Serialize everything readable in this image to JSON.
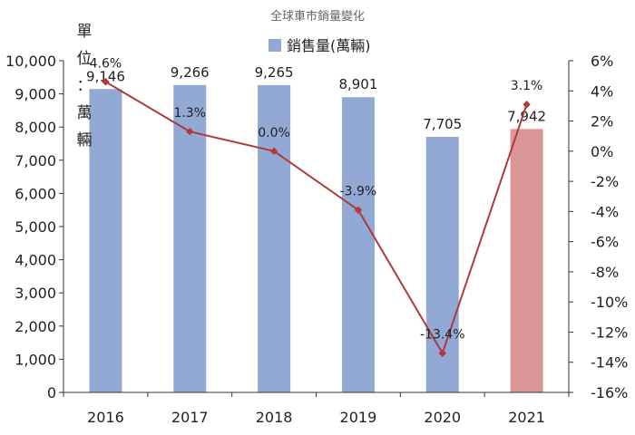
{
  "chart_data": {
    "type": "bar",
    "title": "全球車市銷量變化",
    "unit_label": "單位：萬輛",
    "legend": {
      "label": "銷售量(萬輛)",
      "position": "top-center"
    },
    "categories": [
      "2016",
      "2017",
      "2018",
      "2019",
      "2020",
      "2021"
    ],
    "series": [
      {
        "name": "銷售量(萬輛)",
        "type": "bar",
        "axis": "left",
        "values": [
          9146,
          9266,
          9265,
          8901,
          7705,
          7942
        ],
        "labels": [
          "9,146",
          "9,266",
          "9,265",
          "8,901",
          "7,705",
          "7,942"
        ],
        "colors": [
          "#92a9d5",
          "#92a9d5",
          "#92a9d5",
          "#92a9d5",
          "#92a9d5",
          "#da9797"
        ]
      },
      {
        "type": "line",
        "axis": "right",
        "values": [
          4.6,
          1.3,
          0.0,
          -3.9,
          -13.4,
          3.1
        ],
        "labels": [
          "4.6%",
          "1.3%",
          "0.0%",
          "-3.9%",
          "-13.4%",
          "3.1%"
        ],
        "color": "#b03a3a"
      }
    ],
    "y_left": {
      "min": 0,
      "max": 10000,
      "ticks": [
        "0",
        "1,000",
        "2,000",
        "3,000",
        "4,000",
        "5,000",
        "6,000",
        "7,000",
        "8,000",
        "9,000",
        "10,000"
      ]
    },
    "y_right": {
      "min": -16,
      "max": 6,
      "ticks": [
        "-16%",
        "-14%",
        "-12%",
        "-10%",
        "-8%",
        "-6%",
        "-4%",
        "-2%",
        "0%",
        "2%",
        "4%",
        "6%"
      ]
    },
    "grid": false
  }
}
